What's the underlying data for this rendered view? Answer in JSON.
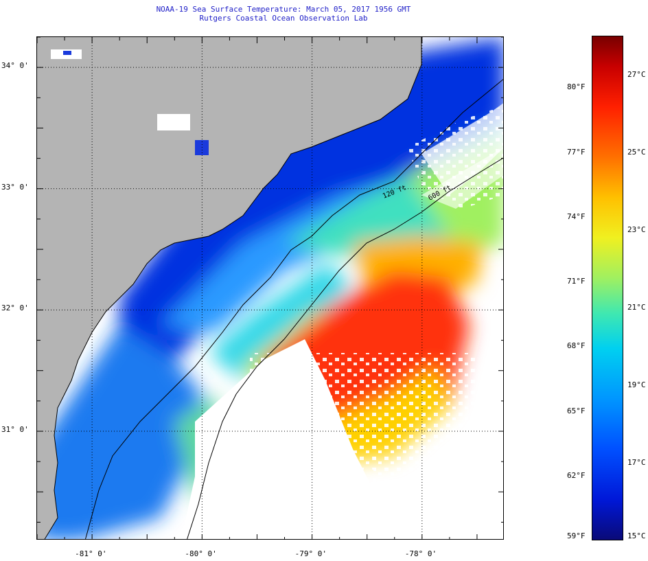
{
  "title": {
    "line1": "NOAA-19 Sea Surface Temperature:  March 05, 2017 1956 GMT",
    "line2": "Rutgers Coastal Ocean Observation Lab"
  },
  "map": {
    "lon_range": [
      -81.5,
      -77.25
    ],
    "lat_range": [
      30.1,
      34.25
    ],
    "lon_labels": [
      "-81° 0'",
      "-80° 0'",
      "-79° 0'",
      "-78° 0'"
    ],
    "lat_labels": [
      "34° 0'",
      "33° 0'",
      "32° 0'",
      "31° 0'"
    ],
    "isobath_labels": [
      "120 ft",
      "600 ft"
    ],
    "colors": {
      "land": "#b4b4b4",
      "cloud": "#ffffff",
      "coast_line": "#000000"
    }
  },
  "colorbar": {
    "fahrenheit_labels": [
      "80°F",
      "77°F",
      "74°F",
      "71°F",
      "68°F",
      "65°F",
      "62°F",
      "59°F"
    ],
    "celsius_labels": [
      "27°C",
      "25°C",
      "23°C",
      "21°C",
      "19°C",
      "17°C",
      "15°C"
    ],
    "range_celsius": [
      15,
      28
    ]
  }
}
